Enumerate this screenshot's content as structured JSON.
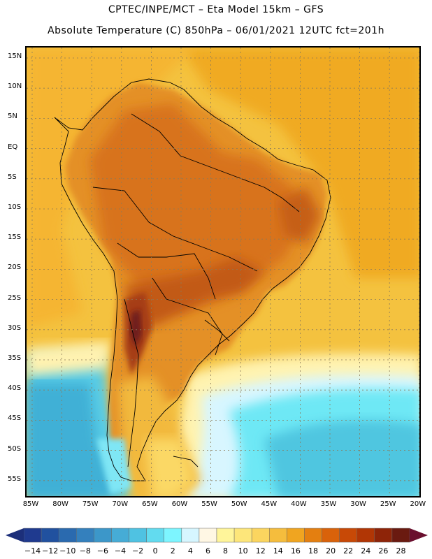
{
  "header": {
    "line1": "CPTEC/INPE/MCT –  Eta Model 15km – GFS",
    "line2": "Absolute Temperature (C) 850hPa – 06/01/2021 12UTC fct=201h"
  },
  "axes": {
    "latitudes": [
      "15N",
      "10N",
      "5N",
      "EQ",
      "5S",
      "10S",
      "15S",
      "20S",
      "25S",
      "30S",
      "35S",
      "40S",
      "45S",
      "50S",
      "55S"
    ],
    "longitudes": [
      "85W",
      "80W",
      "75W",
      "70W",
      "65W",
      "60W",
      "55W",
      "50W",
      "45W",
      "40W",
      "35W",
      "30W",
      "25W",
      "20W"
    ]
  },
  "colorbar": {
    "unit": "C",
    "labels": [
      "-14",
      "-12",
      "-10",
      "-8",
      "-6",
      "-4",
      "-2",
      "0",
      "2",
      "4",
      "6",
      "8",
      "10",
      "12",
      "14",
      "16",
      "18",
      "20",
      "22",
      "24",
      "26",
      "28"
    ],
    "colors": [
      "#1f3a8f",
      "#21519f",
      "#2a6aaf",
      "#3480bd",
      "#3c97c9",
      "#46acd6",
      "#4fc2e2",
      "#62dbef",
      "#7df5ff",
      "#d6f6ff",
      "#fff7e4",
      "#fff59a",
      "#fde67a",
      "#fbd55f",
      "#f5bd3d",
      "#f0a520",
      "#e47f10",
      "#d9620a",
      "#c84906",
      "#b13605",
      "#8e2408",
      "#6a1a10"
    ]
  },
  "map": {
    "region": "South America",
    "ocean_color": "#f2b02c",
    "land_color": "#e48a20"
  }
}
